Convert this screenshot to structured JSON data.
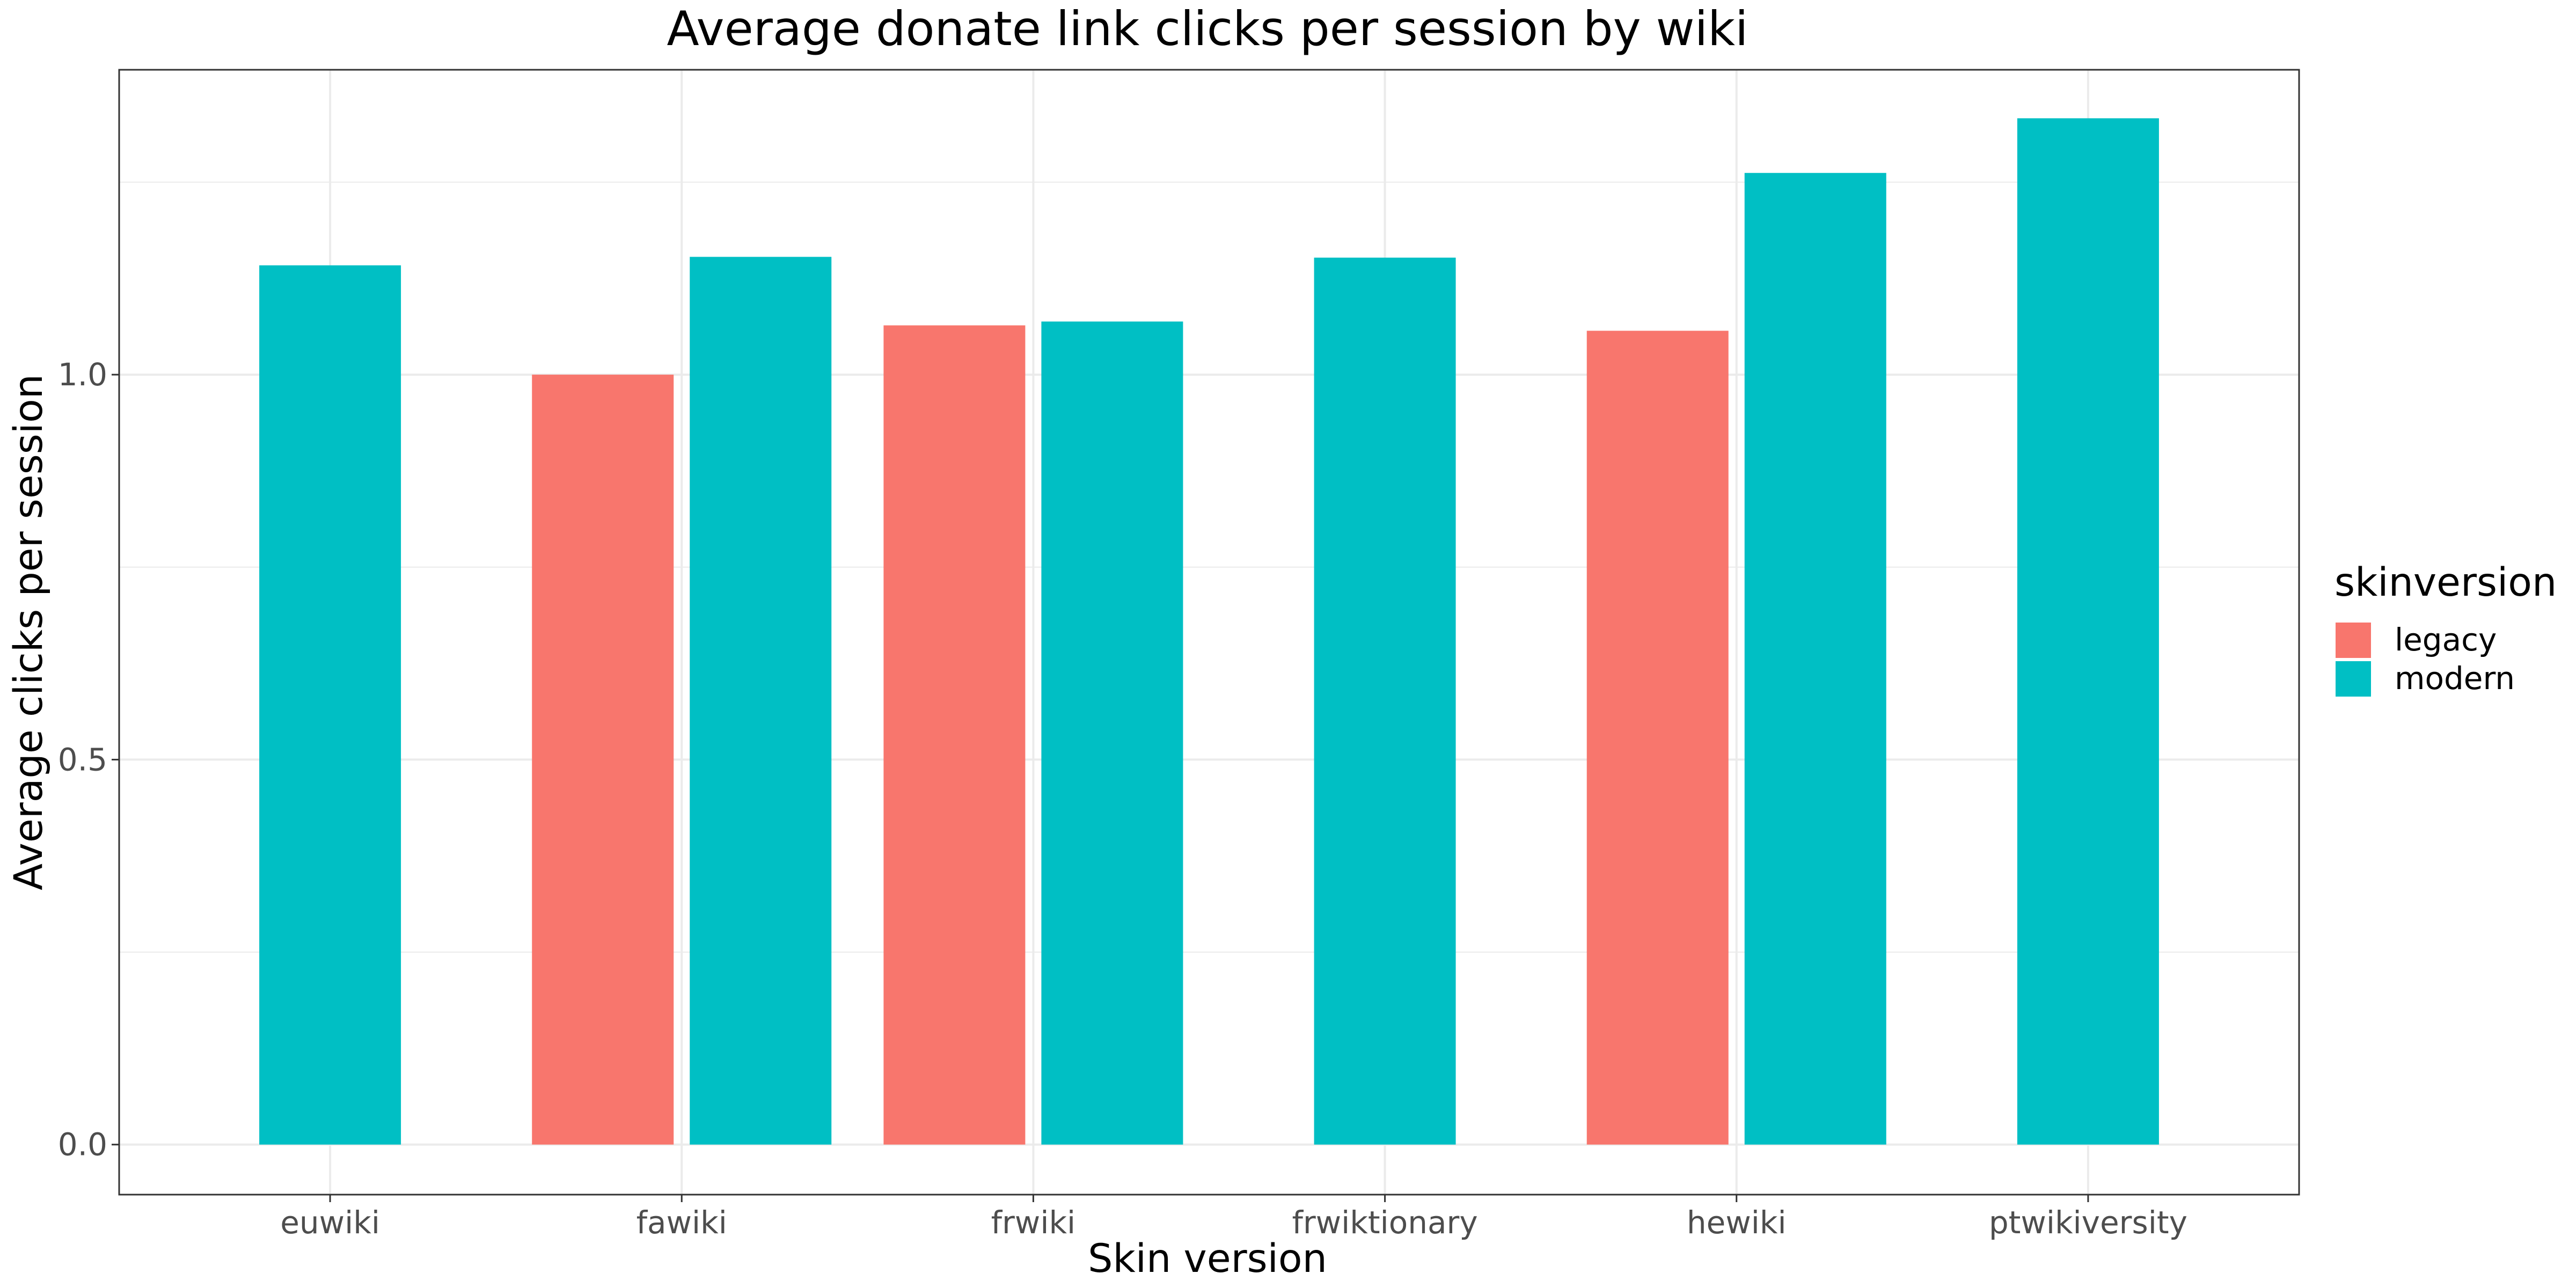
{
  "chart_data": {
    "type": "bar",
    "title": "Average donate link clicks per session by wiki",
    "xlabel": "Skin version",
    "ylabel": "Average clicks per session",
    "categories": [
      "euwiki",
      "fawiki",
      "frwiki",
      "frwiktionary",
      "hewiki",
      "ptwikiversity"
    ],
    "series": [
      {
        "name": "legacy",
        "color": "#F8766D",
        "values": [
          null,
          1.0,
          1.064,
          null,
          1.057,
          null
        ]
      },
      {
        "name": "modern",
        "color": "#00BFC4",
        "values": [
          1.142,
          1.153,
          1.069,
          1.152,
          1.262,
          1.333
        ]
      }
    ],
    "ylim": [
      -0.065,
      1.396
    ],
    "yticks": [
      0.0,
      0.5,
      1.0
    ],
    "ytick_labels": [
      "0.0",
      "0.5",
      "1.0"
    ],
    "grid": true,
    "legend": {
      "title": "skinversion",
      "position": "right"
    }
  }
}
